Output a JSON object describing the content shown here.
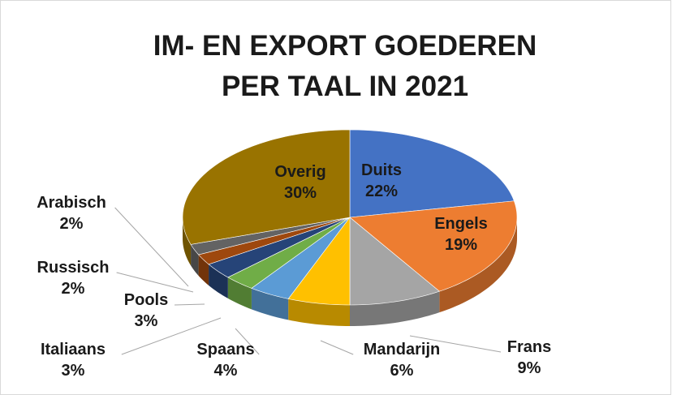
{
  "chart_data": {
    "type": "pie3d",
    "title": [
      "IM- EN EXPORT GOEDEREN",
      "PER TAAL IN 2021"
    ],
    "categories": [
      "Duits",
      "Engels",
      "Frans",
      "Mandarijn",
      "Spaans",
      "Italiaans",
      "Pools",
      "Russisch",
      "Arabisch",
      "Overig"
    ],
    "values": [
      22,
      19,
      9,
      6,
      4,
      3,
      3,
      2,
      2,
      30
    ],
    "value_labels": [
      "22%",
      "19%",
      "9%",
      "6%",
      "4%",
      "3%",
      "3%",
      "2%",
      "2%",
      "30%"
    ],
    "colors": [
      "#4472c4",
      "#ed7d31",
      "#a5a5a5",
      "#ffc000",
      "#5b9bd5",
      "#70ad47",
      "#264478",
      "#9e480e",
      "#636363",
      "#997300"
    ]
  }
}
